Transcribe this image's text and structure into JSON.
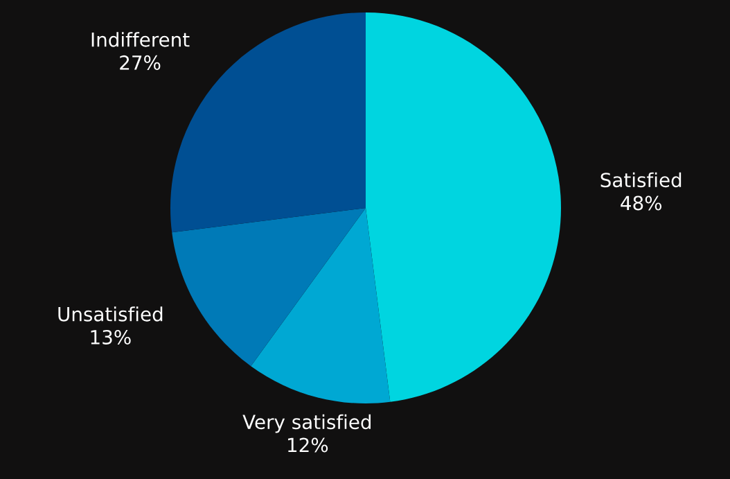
{
  "chart_data": {
    "type": "pie",
    "categories": [
      "Satisfied",
      "Very satisfied",
      "Unsatisfied",
      "Indifferent"
    ],
    "values": [
      48,
      12,
      13,
      27
    ],
    "value_labels": [
      "48%",
      "12%",
      "13%",
      "27%"
    ],
    "colors": [
      "#00d5e0",
      "#00a8d3",
      "#007ab7",
      "#004f93"
    ],
    "legend": false
  }
}
